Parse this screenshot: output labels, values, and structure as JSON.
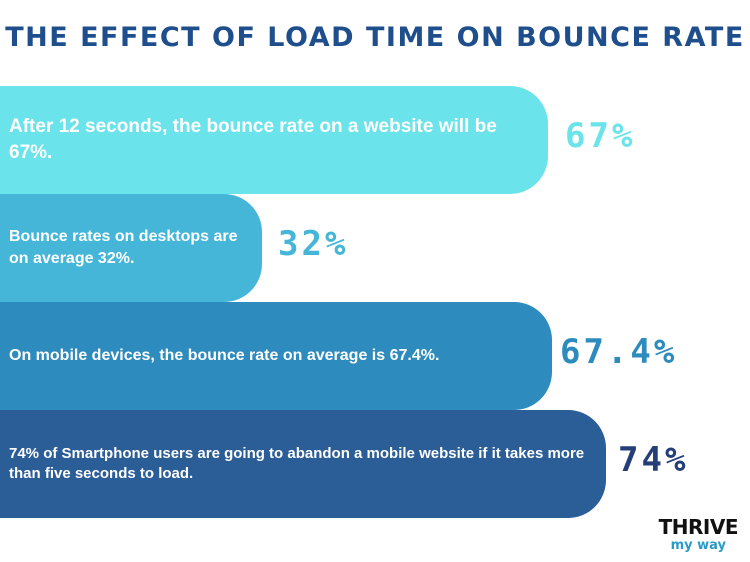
{
  "chart_data": {
    "type": "bar",
    "title": "THE EFFECT OF LOAD TIME ON BOUNCE RATE",
    "bars": [
      {
        "text": "After 12 seconds, the bounce rate on a website will be 67%.",
        "label": "67%",
        "value": 67,
        "color": "#6ae3ea",
        "label_color": "#6ae3ea"
      },
      {
        "text": "Bounce rates on desktops are on average 32%.",
        "label": "32%",
        "value": 32,
        "color": "#45b6d8",
        "label_color": "#45b6d8"
      },
      {
        "text": "On mobile devices, the bounce rate on average is 67.4%.",
        "label": "67.4%",
        "value": 67.4,
        "color": "#2e8bbd",
        "label_color": "#2e8bbd"
      },
      {
        "text": "74% of Smartphone users are going to abandon a mobile website if it takes more than five seconds to load.",
        "label": "74%",
        "value": 74,
        "color": "#2b5d97",
        "label_color": "#243e78"
      }
    ]
  },
  "colors": {
    "title": "#1f4e8c",
    "logo_primary": "#111111",
    "logo_accent": "#2a9ac9"
  },
  "logo": {
    "top": "THRIVE",
    "bottom": "my way"
  }
}
